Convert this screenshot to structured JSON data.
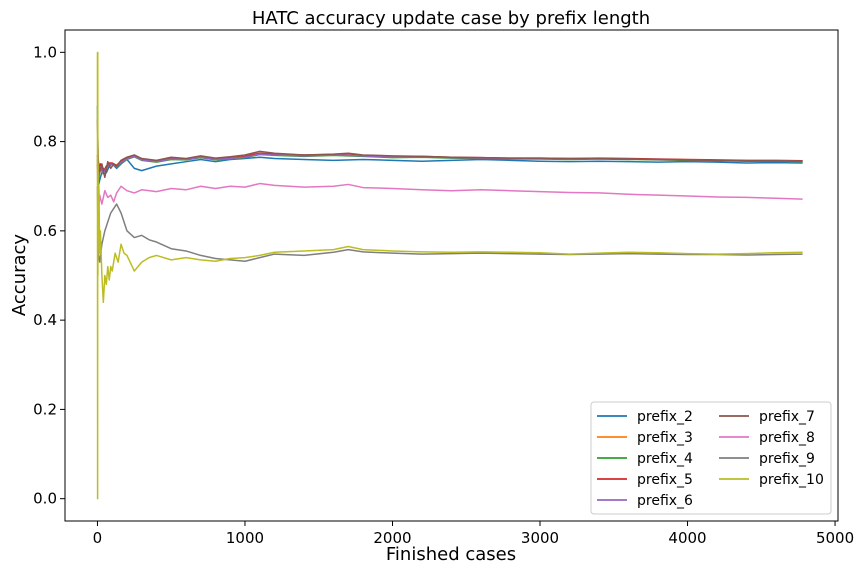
{
  "chart_data": {
    "type": "line",
    "title": "HATC accuracy update case by prefix length",
    "xlabel": "Finished cases",
    "ylabel": "Accuracy",
    "xlim": [
      -220,
      5020
    ],
    "ylim": [
      -0.05,
      1.05
    ],
    "xticks": [
      0,
      1000,
      2000,
      3000,
      4000,
      5000
    ],
    "yticks": [
      0.0,
      0.2,
      0.4,
      0.6,
      0.8,
      1.0
    ],
    "xtick_labels": [
      "0",
      "1000",
      "2000",
      "3000",
      "4000",
      "5000"
    ],
    "ytick_labels": [
      "0.0",
      "0.2",
      "0.4",
      "0.6",
      "0.8",
      "1.0"
    ],
    "grid": false,
    "legend_position": "lower-right",
    "legend_columns": 2,
    "series": [
      {
        "name": "prefix_2",
        "color": "#1f77b4",
        "x": [
          0,
          5,
          20,
          40,
          60,
          80,
          100,
          130,
          160,
          200,
          250,
          300,
          350,
          400,
          500,
          600,
          700,
          800,
          900,
          1000,
          1100,
          1200,
          1400,
          1600,
          1800,
          2000,
          2200,
          2400,
          2600,
          2800,
          3000,
          3200,
          3400,
          3600,
          3800,
          4000,
          4200,
          4400,
          4600,
          4780
        ],
        "y": [
          0.88,
          0.7,
          0.72,
          0.74,
          0.73,
          0.745,
          0.75,
          0.74,
          0.75,
          0.76,
          0.74,
          0.735,
          0.74,
          0.745,
          0.75,
          0.755,
          0.76,
          0.755,
          0.76,
          0.762,
          0.765,
          0.762,
          0.76,
          0.758,
          0.76,
          0.758,
          0.756,
          0.758,
          0.76,
          0.758,
          0.756,
          0.755,
          0.756,
          0.755,
          0.754,
          0.755,
          0.754,
          0.752,
          0.753,
          0.752
        ]
      },
      {
        "name": "prefix_3",
        "color": "#ff7f0e",
        "x": [
          0,
          5,
          20,
          40,
          60,
          80,
          100,
          130,
          160,
          200,
          250,
          300,
          400,
          500,
          600,
          700,
          800,
          900,
          1000,
          1100,
          1200,
          1400,
          1600,
          1800,
          2000,
          2200,
          2400,
          2600,
          2800,
          3000,
          3200,
          3400,
          3600,
          3800,
          4000,
          4200,
          4400,
          4600,
          4780
        ],
        "y": [
          0.75,
          0.72,
          0.745,
          0.73,
          0.74,
          0.75,
          0.748,
          0.745,
          0.755,
          0.762,
          0.768,
          0.76,
          0.755,
          0.762,
          0.76,
          0.765,
          0.76,
          0.762,
          0.765,
          0.772,
          0.77,
          0.768,
          0.77,
          0.768,
          0.765,
          0.766,
          0.764,
          0.763,
          0.762,
          0.762,
          0.761,
          0.762,
          0.761,
          0.76,
          0.759,
          0.758,
          0.757,
          0.757,
          0.756
        ]
      },
      {
        "name": "prefix_4",
        "color": "#2ca02c",
        "x": [
          0,
          5,
          20,
          40,
          60,
          80,
          100,
          130,
          160,
          200,
          250,
          300,
          400,
          500,
          600,
          700,
          800,
          900,
          1000,
          1100,
          1200,
          1400,
          1600,
          1800,
          2000,
          2200,
          2400,
          2600,
          2800,
          3000,
          3200,
          3400,
          3600,
          3800,
          4000,
          4200,
          4400,
          4600,
          4780
        ],
        "y": [
          0.76,
          0.71,
          0.74,
          0.728,
          0.742,
          0.748,
          0.75,
          0.743,
          0.752,
          0.76,
          0.766,
          0.758,
          0.754,
          0.76,
          0.759,
          0.764,
          0.759,
          0.761,
          0.764,
          0.771,
          0.769,
          0.767,
          0.769,
          0.767,
          0.764,
          0.765,
          0.763,
          0.762,
          0.761,
          0.761,
          0.76,
          0.761,
          0.76,
          0.759,
          0.758,
          0.757,
          0.756,
          0.756,
          0.755
        ]
      },
      {
        "name": "prefix_5",
        "color": "#d62728",
        "x": [
          0,
          5,
          20,
          40,
          60,
          80,
          100,
          130,
          160,
          200,
          250,
          300,
          400,
          500,
          600,
          700,
          800,
          900,
          1000,
          1100,
          1200,
          1400,
          1600,
          1800,
          2000,
          2200,
          2400,
          2600,
          2800,
          3000,
          3200,
          3400,
          3600,
          3800,
          4000,
          4200,
          4400,
          4600,
          4780
        ],
        "y": [
          0.77,
          0.73,
          0.75,
          0.732,
          0.745,
          0.752,
          0.752,
          0.747,
          0.756,
          0.763,
          0.769,
          0.761,
          0.757,
          0.763,
          0.761,
          0.766,
          0.762,
          0.763,
          0.767,
          0.774,
          0.772,
          0.77,
          0.771,
          0.769,
          0.766,
          0.767,
          0.765,
          0.764,
          0.763,
          0.763,
          0.762,
          0.763,
          0.762,
          0.761,
          0.76,
          0.759,
          0.758,
          0.758,
          0.757
        ]
      },
      {
        "name": "prefix_6",
        "color": "#9467bd",
        "x": [
          0,
          5,
          20,
          40,
          60,
          80,
          100,
          130,
          160,
          200,
          250,
          300,
          400,
          500,
          600,
          700,
          800,
          900,
          1000,
          1100,
          1200,
          1400,
          1600,
          1800,
          2000,
          2200,
          2400,
          2600,
          2800,
          3000,
          3200,
          3400,
          3600,
          3800,
          4000,
          4200,
          4400,
          4600,
          4780
        ],
        "y": [
          0.75,
          0.72,
          0.744,
          0.729,
          0.741,
          0.749,
          0.749,
          0.744,
          0.753,
          0.761,
          0.767,
          0.759,
          0.755,
          0.761,
          0.76,
          0.765,
          0.76,
          0.762,
          0.765,
          0.772,
          0.77,
          0.768,
          0.77,
          0.768,
          0.765,
          0.766,
          0.764,
          0.763,
          0.762,
          0.762,
          0.761,
          0.762,
          0.761,
          0.76,
          0.759,
          0.758,
          0.757,
          0.757,
          0.756
        ]
      },
      {
        "name": "prefix_7",
        "color": "#8c564b",
        "x": [
          0,
          5,
          15,
          30,
          50,
          70,
          90,
          110,
          130,
          160,
          200,
          250,
          300,
          400,
          500,
          600,
          700,
          800,
          900,
          1000,
          1100,
          1200,
          1400,
          1600,
          1700,
          1800,
          2000,
          2200,
          2400,
          2600,
          2800,
          3000,
          3200,
          3400,
          3600,
          3800,
          4000,
          4200,
          4400,
          4600,
          4780
        ],
        "y": [
          0.85,
          0.76,
          0.73,
          0.75,
          0.72,
          0.755,
          0.74,
          0.75,
          0.745,
          0.758,
          0.765,
          0.77,
          0.762,
          0.758,
          0.765,
          0.762,
          0.768,
          0.763,
          0.766,
          0.77,
          0.778,
          0.774,
          0.77,
          0.772,
          0.774,
          0.77,
          0.768,
          0.767,
          0.765,
          0.764,
          0.763,
          0.763,
          0.762,
          0.762,
          0.761,
          0.76,
          0.759,
          0.758,
          0.757,
          0.757,
          0.756
        ]
      },
      {
        "name": "prefix_8",
        "color": "#e377c2",
        "x": [
          0,
          5,
          15,
          30,
          50,
          70,
          90,
          110,
          130,
          160,
          200,
          250,
          300,
          400,
          500,
          600,
          700,
          800,
          900,
          1000,
          1100,
          1200,
          1400,
          1600,
          1700,
          1800,
          2000,
          2200,
          2400,
          2600,
          2800,
          3000,
          3200,
          3400,
          3600,
          3800,
          4000,
          4200,
          4400,
          4600,
          4780
        ],
        "y": [
          0.75,
          0.64,
          0.68,
          0.66,
          0.69,
          0.675,
          0.68,
          0.665,
          0.685,
          0.7,
          0.69,
          0.685,
          0.692,
          0.688,
          0.695,
          0.692,
          0.7,
          0.695,
          0.7,
          0.698,
          0.706,
          0.702,
          0.698,
          0.7,
          0.704,
          0.697,
          0.695,
          0.692,
          0.69,
          0.692,
          0.69,
          0.688,
          0.686,
          0.685,
          0.682,
          0.68,
          0.678,
          0.676,
          0.675,
          0.673,
          0.671
        ]
      },
      {
        "name": "prefix_9",
        "color": "#7f7f7f",
        "x": [
          0,
          5,
          15,
          30,
          50,
          70,
          90,
          110,
          130,
          160,
          200,
          250,
          300,
          350,
          400,
          500,
          600,
          700,
          800,
          900,
          1000,
          1100,
          1200,
          1400,
          1600,
          1700,
          1800,
          2000,
          2200,
          2400,
          2600,
          2800,
          3000,
          3200,
          3400,
          3600,
          3800,
          4000,
          4200,
          4400,
          4600,
          4780
        ],
        "y": [
          0.7,
          0.55,
          0.53,
          0.57,
          0.6,
          0.62,
          0.64,
          0.65,
          0.66,
          0.64,
          0.6,
          0.585,
          0.59,
          0.58,
          0.575,
          0.56,
          0.555,
          0.545,
          0.538,
          0.535,
          0.532,
          0.54,
          0.548,
          0.545,
          0.552,
          0.558,
          0.553,
          0.55,
          0.548,
          0.549,
          0.55,
          0.549,
          0.548,
          0.547,
          0.548,
          0.549,
          0.548,
          0.547,
          0.547,
          0.546,
          0.547,
          0.548
        ]
      },
      {
        "name": "prefix_10",
        "color": "#bcbd22",
        "x": [
          0,
          1,
          2,
          3,
          4,
          6,
          10,
          15,
          20,
          30,
          40,
          50,
          60,
          70,
          80,
          90,
          100,
          120,
          140,
          160,
          180,
          200,
          250,
          300,
          350,
          400,
          500,
          600,
          700,
          800,
          900,
          1000,
          1100,
          1200,
          1400,
          1600,
          1700,
          1800,
          2000,
          2200,
          2400,
          2600,
          2800,
          3000,
          3200,
          3400,
          3600,
          3800,
          4000,
          4200,
          4400,
          4600,
          4780
        ],
        "y": [
          1.0,
          0.0,
          1.0,
          0.5,
          0.75,
          0.6,
          0.7,
          0.55,
          0.6,
          0.5,
          0.44,
          0.5,
          0.48,
          0.52,
          0.49,
          0.52,
          0.51,
          0.55,
          0.53,
          0.57,
          0.55,
          0.545,
          0.51,
          0.53,
          0.54,
          0.545,
          0.535,
          0.54,
          0.535,
          0.532,
          0.538,
          0.54,
          0.545,
          0.552,
          0.555,
          0.558,
          0.565,
          0.558,
          0.555,
          0.553,
          0.552,
          0.553,
          0.552,
          0.551,
          0.548,
          0.55,
          0.552,
          0.551,
          0.549,
          0.548,
          0.549,
          0.551,
          0.552
        ]
      }
    ]
  }
}
